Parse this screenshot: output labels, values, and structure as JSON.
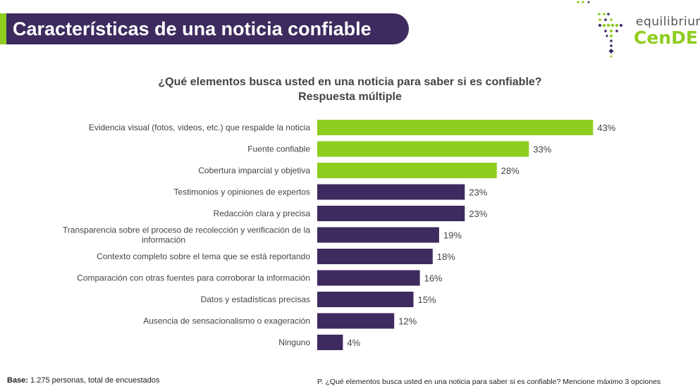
{
  "header": {
    "title": "Características de una noticia confiable"
  },
  "logo": {
    "line1": "equilibrium",
    "line2": "CenDE"
  },
  "colors": {
    "header_bg": "#3d2b5f",
    "accent_green": "#8fcd1f",
    "bar_purple": "#3d2b5f"
  },
  "question": {
    "line1": "¿Qué elementos busca usted en una noticia para saber si es confiable?",
    "line2": "Respuesta múltiple"
  },
  "chart_data": {
    "type": "bar",
    "orientation": "horizontal",
    "title": "¿Qué elementos busca usted en una noticia para saber si es confiable?",
    "subtitle": "Respuesta múltiple",
    "categories": [
      "Evidencia visual (fotos, videos, etc.) que respalde la noticia",
      "Fuente confiable",
      "Cobertura imparcial y objetiva",
      "Testimonios y opiniones de expertos",
      "Redacción clara y precisa",
      "Transparencia sobre el proceso de recolección y verificación de la información",
      "Contexto completo sobre el tema que se está reportando",
      "Comparación con otras fuentes para corroborar la información",
      "Datos y estadísticas precisas",
      "Ausencia de sensacionalismo o exageración",
      "Ninguno"
    ],
    "values": [
      43,
      33,
      28,
      23,
      23,
      19,
      18,
      16,
      15,
      12,
      4
    ],
    "value_labels": [
      "43%",
      "33%",
      "28%",
      "23%",
      "23%",
      "19%",
      "18%",
      "16%",
      "15%",
      "12%",
      "4%"
    ],
    "highlight_top": 3,
    "unit": "%",
    "grid": false,
    "legend": "none"
  },
  "footer": {
    "base_label": "Base:",
    "base_text": "1.275 personas, total de encuestados",
    "note": "P. ¿Qué elementos busca usted en una noticia para saber si es confiable? Mencione máximo 3 opciones"
  }
}
